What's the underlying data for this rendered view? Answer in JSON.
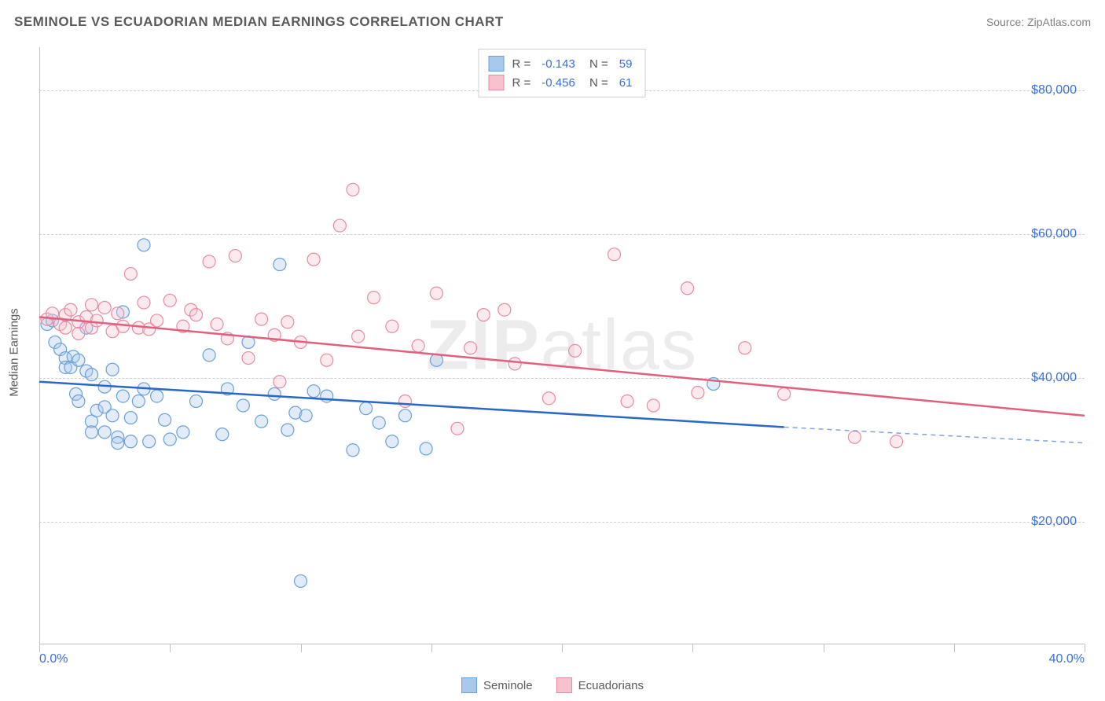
{
  "title": "SEMINOLE VS ECUADORIAN MEDIAN EARNINGS CORRELATION CHART",
  "source_label": "Source: ZipAtlas.com",
  "watermark": {
    "prefix": "ZIP",
    "suffix": "atlas"
  },
  "y_axis_label": "Median Earnings",
  "chart": {
    "type": "scatter",
    "background_color": "#ffffff",
    "grid_color": "#d0d0d0",
    "axis_color": "#c0c0c0",
    "tick_label_color": "#3b6fd8",
    "axis_label_color": "#5a5a5a",
    "xlim": [
      0,
      40
    ],
    "ylim": [
      3000,
      86000
    ],
    "x_ticks": [
      0,
      5,
      10,
      15,
      20,
      25,
      30,
      35,
      40
    ],
    "x_tick_labels": {
      "0": "0.0%",
      "40": "40.0%"
    },
    "y_ticks": [
      20000,
      40000,
      60000,
      80000
    ],
    "y_tick_labels": {
      "20000": "$20,000",
      "40000": "$40,000",
      "60000": "$60,000",
      "80000": "$80,000"
    },
    "marker_radius": 8,
    "marker_fill_opacity": 0.35,
    "marker_stroke_width": 1.2,
    "trend_line_width": 2.5,
    "series": [
      {
        "name": "Seminole",
        "color_fill": "#a8c8ec",
        "color_stroke": "#6a9fd8",
        "trend_color": "#2968c8",
        "R": "-0.143",
        "N": "59",
        "trend": {
          "x1": 0,
          "y1": 39500,
          "x2": 28.5,
          "y2": 33200,
          "dash_x2": 40,
          "dash_y2": 31000
        },
        "points": [
          [
            0.3,
            47500
          ],
          [
            0.5,
            48000
          ],
          [
            0.6,
            45000
          ],
          [
            0.8,
            44000
          ],
          [
            1.0,
            42800
          ],
          [
            1.0,
            41500
          ],
          [
            1.2,
            41500
          ],
          [
            1.3,
            43000
          ],
          [
            1.4,
            37800
          ],
          [
            1.5,
            42500
          ],
          [
            1.5,
            36800
          ],
          [
            1.8,
            47000
          ],
          [
            1.8,
            41000
          ],
          [
            2.0,
            40500
          ],
          [
            2.0,
            34000
          ],
          [
            2.0,
            32500
          ],
          [
            2.2,
            35500
          ],
          [
            2.5,
            38800
          ],
          [
            2.5,
            36000
          ],
          [
            2.5,
            32500
          ],
          [
            2.8,
            41200
          ],
          [
            2.8,
            34800
          ],
          [
            3.0,
            31800
          ],
          [
            3.0,
            31000
          ],
          [
            3.2,
            49200
          ],
          [
            3.2,
            37500
          ],
          [
            3.5,
            34500
          ],
          [
            3.5,
            31200
          ],
          [
            3.8,
            36800
          ],
          [
            4.0,
            58500
          ],
          [
            4.0,
            38500
          ],
          [
            4.2,
            31200
          ],
          [
            4.5,
            37500
          ],
          [
            4.8,
            34200
          ],
          [
            5.0,
            31500
          ],
          [
            5.5,
            32500
          ],
          [
            6.0,
            36800
          ],
          [
            6.5,
            43200
          ],
          [
            7.0,
            32200
          ],
          [
            7.2,
            38500
          ],
          [
            7.8,
            36200
          ],
          [
            8.0,
            45000
          ],
          [
            8.5,
            34000
          ],
          [
            9.0,
            37800
          ],
          [
            9.2,
            55800
          ],
          [
            9.5,
            32800
          ],
          [
            9.8,
            35200
          ],
          [
            10.0,
            11800
          ],
          [
            10.2,
            34800
          ],
          [
            10.5,
            38200
          ],
          [
            11.0,
            37500
          ],
          [
            12.0,
            30000
          ],
          [
            12.5,
            35800
          ],
          [
            13.0,
            33800
          ],
          [
            13.5,
            31200
          ],
          [
            14.0,
            34800
          ],
          [
            14.8,
            30200
          ],
          [
            15.2,
            42500
          ],
          [
            25.8,
            39200
          ]
        ]
      },
      {
        "name": "Ecuadorians",
        "color_fill": "#f5c2cd",
        "color_stroke": "#e88ba0",
        "trend_color": "#e0607e",
        "R": "-0.456",
        "N": "61",
        "trend": {
          "x1": 0,
          "y1": 48500,
          "x2": 40,
          "y2": 34800
        },
        "points": [
          [
            0.3,
            48200
          ],
          [
            0.5,
            49000
          ],
          [
            0.8,
            47500
          ],
          [
            1.0,
            48800
          ],
          [
            1.0,
            47000
          ],
          [
            1.2,
            49500
          ],
          [
            1.5,
            47800
          ],
          [
            1.5,
            46200
          ],
          [
            1.8,
            48500
          ],
          [
            2.0,
            47000
          ],
          [
            2.0,
            50200
          ],
          [
            2.2,
            48000
          ],
          [
            2.5,
            49800
          ],
          [
            2.8,
            46500
          ],
          [
            3.0,
            49000
          ],
          [
            3.2,
            47200
          ],
          [
            3.5,
            54500
          ],
          [
            3.8,
            47000
          ],
          [
            4.0,
            50500
          ],
          [
            4.2,
            46800
          ],
          [
            4.5,
            48000
          ],
          [
            5.0,
            50800
          ],
          [
            5.5,
            47200
          ],
          [
            5.8,
            49500
          ],
          [
            6.0,
            48800
          ],
          [
            6.5,
            56200
          ],
          [
            6.8,
            47500
          ],
          [
            7.2,
            45500
          ],
          [
            7.5,
            57000
          ],
          [
            8.0,
            42800
          ],
          [
            8.5,
            48200
          ],
          [
            9.0,
            46000
          ],
          [
            9.2,
            39500
          ],
          [
            9.5,
            47800
          ],
          [
            10.0,
            45000
          ],
          [
            10.5,
            56500
          ],
          [
            11.0,
            42500
          ],
          [
            11.5,
            61200
          ],
          [
            12.0,
            66200
          ],
          [
            12.2,
            45800
          ],
          [
            12.8,
            51200
          ],
          [
            13.5,
            47200
          ],
          [
            14.0,
            36800
          ],
          [
            14.5,
            44500
          ],
          [
            15.2,
            51800
          ],
          [
            16.0,
            33000
          ],
          [
            16.5,
            44200
          ],
          [
            17.0,
            48800
          ],
          [
            17.8,
            49500
          ],
          [
            18.2,
            42000
          ],
          [
            19.5,
            37200
          ],
          [
            20.5,
            43800
          ],
          [
            22.0,
            57200
          ],
          [
            22.5,
            36800
          ],
          [
            23.5,
            36200
          ],
          [
            24.8,
            52500
          ],
          [
            25.2,
            38000
          ],
          [
            27.0,
            44200
          ],
          [
            31.2,
            31800
          ],
          [
            32.8,
            31200
          ],
          [
            28.5,
            37800
          ]
        ]
      }
    ]
  },
  "bottom_legend": [
    {
      "label": "Seminole",
      "fill": "#a8c8ec",
      "stroke": "#6a9fd8"
    },
    {
      "label": "Ecuadorians",
      "fill": "#f5c2cd",
      "stroke": "#e88ba0"
    }
  ]
}
